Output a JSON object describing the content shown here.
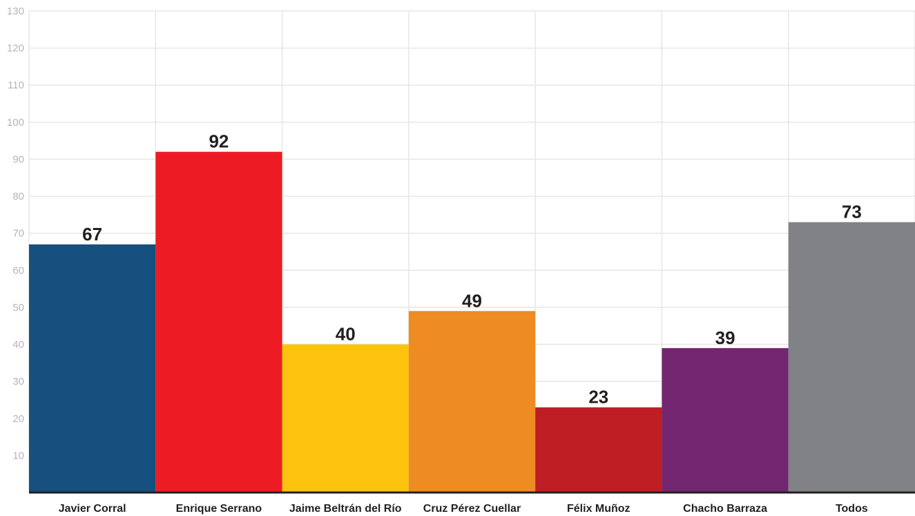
{
  "chart_data": {
    "type": "bar",
    "title": "",
    "xlabel": "",
    "ylabel": "",
    "categories": [
      "Javier Corral",
      "Enrique Serrano",
      "Jaime Beltrán del Río",
      "Cruz Pérez Cuellar",
      "Félix Muñoz",
      "Chacho Barraza",
      "Todos"
    ],
    "values": [
      67,
      92,
      40,
      49,
      23,
      39,
      73
    ],
    "value_labels": [
      "67",
      "92",
      "40",
      "49",
      "23",
      "39",
      "73"
    ],
    "colors": [
      "#16507f",
      "#ed1c24",
      "#fdc30f",
      "#ee8b23",
      "#be1e23",
      "#732670",
      "#818285"
    ],
    "ylim": [
      0,
      130
    ],
    "yticks": [
      10,
      20,
      30,
      40,
      50,
      60,
      70,
      80,
      90,
      100,
      110,
      120,
      130
    ],
    "grid": true,
    "legend": "none"
  }
}
